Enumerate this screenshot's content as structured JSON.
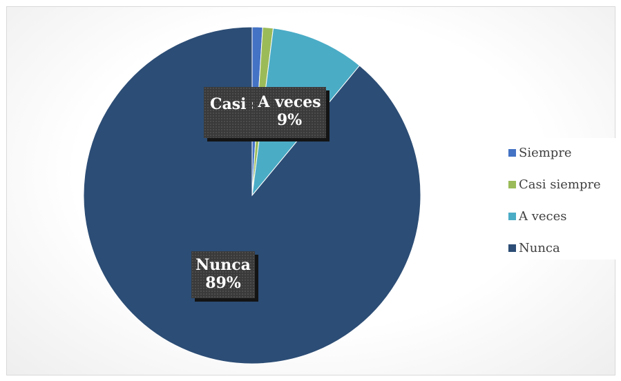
{
  "chart_data": {
    "type": "pie",
    "legend_position": "right",
    "slices": [
      {
        "name": "Siempre",
        "percent": 1,
        "color": "#4472c4"
      },
      {
        "name": "Casi siempre",
        "percent": 1,
        "color": "#9bbb59"
      },
      {
        "name": "A veces",
        "percent": 9,
        "color": "#4bacc6"
      },
      {
        "name": "Nunca",
        "percent": 89,
        "color": "#2c4d75"
      }
    ],
    "data_labels": [
      {
        "category": "Casi siempre",
        "text": "Casi s"
      },
      {
        "category": "A veces",
        "text": "A veces",
        "value": "9%"
      },
      {
        "category": "Nunca",
        "text": "Nunca",
        "value": "89%"
      }
    ],
    "legend": [
      "Siempre",
      "Casi siempre",
      "A veces",
      "Nunca"
    ]
  }
}
